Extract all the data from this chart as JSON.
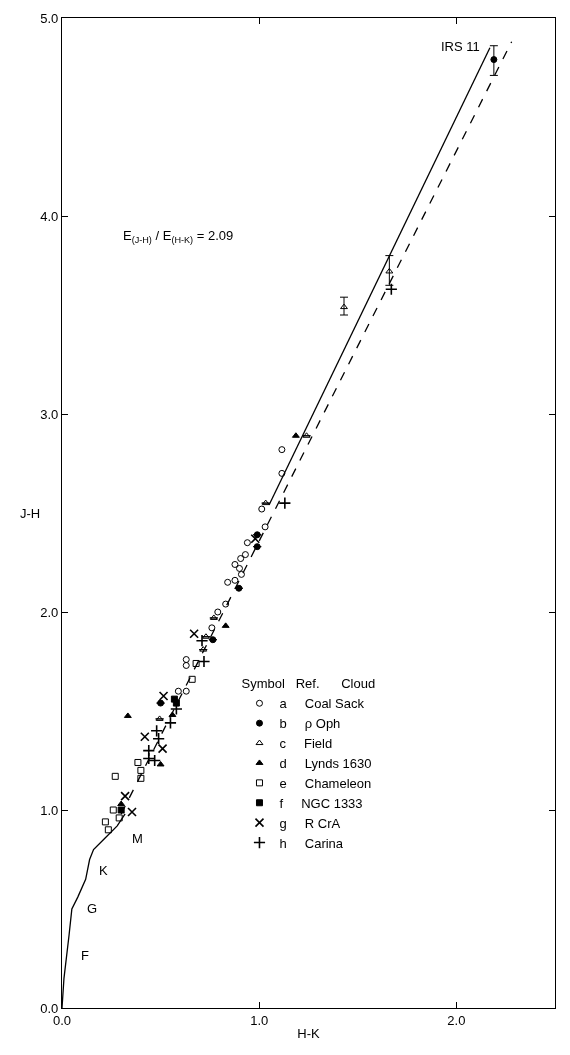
{
  "chart_data": {
    "type": "scatter",
    "xlabel": "H-K",
    "ylabel": "J-H",
    "legend_title": "Symbol   Ref.      Cloud",
    "xlim": [
      0,
      2.5
    ],
    "ylim": [
      0,
      5.0
    ],
    "xticks": [
      {
        "value": 0,
        "label": "0.0"
      },
      {
        "value": 1,
        "label": "1.0"
      },
      {
        "value": 2,
        "label": "2.0"
      }
    ],
    "yticks": [
      {
        "value": 0,
        "label": "0.0"
      },
      {
        "value": 1,
        "label": "1.0"
      },
      {
        "value": 2,
        "label": "2.0"
      },
      {
        "value": 3,
        "label": "3.0"
      },
      {
        "value": 4,
        "label": "4.0"
      },
      {
        "value": 5,
        "label": "5.0"
      }
    ],
    "legend": "bottom right",
    "series": [
      {
        "name": "a     Coal Sack",
        "color": "#000000",
        "marker": "circle-open",
        "x": [
          0.63,
          0.63,
          0.63,
          0.59,
          1.115,
          1.115,
          1.013,
          1.03,
          0.94,
          0.93,
          0.906,
          0.877,
          0.9,
          0.91,
          0.84,
          0.877,
          0.83,
          0.79,
          0.76
        ],
        "values": [
          1.76,
          1.73,
          1.6,
          1.6,
          2.82,
          2.7,
          2.52,
          2.43,
          2.35,
          2.29,
          2.27,
          2.24,
          2.22,
          2.19,
          2.15,
          2.16,
          2.04,
          2.0,
          1.92
        ]
      },
      {
        "name": "b     ρ Oph",
        "color": "#000000",
        "marker": "circle",
        "x": [
          0.5,
          0.99,
          0.99,
          0.897,
          0.765,
          2.19
        ],
        "values": [
          1.54,
          2.39,
          2.33,
          2.12,
          1.86,
          4.79
        ],
        "errors": [
          null,
          null,
          null,
          null,
          null,
          [
            4.71,
            4.86
          ]
        ]
      },
      {
        "name": "c     Field",
        "color": "#000000",
        "marker": "triangle-open",
        "x": [
          1.24,
          1.033,
          0.77,
          0.73,
          0.716,
          0.495,
          1.43,
          1.66
        ],
        "values": [
          2.89,
          2.55,
          1.97,
          1.875,
          1.81,
          1.46,
          3.54,
          3.72
        ],
        "errors": [
          null,
          null,
          null,
          null,
          null,
          null,
          [
            3.5,
            3.59
          ],
          [
            3.65,
            3.8
          ]
        ]
      },
      {
        "name": "d     Lynds 1630",
        "color": "#000000",
        "marker": "triangle",
        "x": [
          0.334,
          1.186,
          0.83,
          0.56,
          0.5,
          0.3
        ],
        "values": [
          1.475,
          2.89,
          1.93,
          1.48,
          1.23,
          1.03
        ]
      },
      {
        "name": "e     Chameleon",
        "color": "#000000",
        "marker": "square-open",
        "x": [
          0.68,
          0.66,
          0.385,
          0.4,
          0.4,
          0.27,
          0.26,
          0.29,
          0.22,
          0.235
        ],
        "values": [
          1.74,
          1.66,
          1.24,
          1.2,
          1.16,
          1.17,
          1.0,
          0.96,
          0.94,
          0.9
        ]
      },
      {
        "name": "f     NGC 1333",
        "color": "#000000",
        "marker": "square",
        "x": [
          0.57,
          0.58,
          0.3
        ],
        "values": [
          1.56,
          1.54,
          1.0
        ]
      },
      {
        "name": "g     R CrA",
        "color": "#000000",
        "marker": "x",
        "x": [
          0.515,
          0.42,
          0.51,
          0.32,
          0.355,
          0.67,
          0.98
        ],
        "values": [
          1.576,
          1.37,
          1.31,
          1.07,
          0.99,
          1.89,
          2.37
        ]
      },
      {
        "name": "h     Carina",
        "color": "#000000",
        "marker": "cross",
        "x": [
          0.72,
          0.58,
          0.55,
          0.48,
          0.49,
          0.44,
          0.44,
          0.47,
          1.13,
          0.71,
          1.67
        ],
        "values": [
          1.75,
          1.51,
          1.44,
          1.4,
          1.36,
          1.3,
          1.26,
          1.25,
          2.55,
          1.855,
          3.63
        ]
      },
      {
        "type": "line",
        "color": "#000000",
        "line_style": "solid",
        "x": [
          0,
          0.01,
          0.036,
          0.05,
          0.08,
          0.12,
          0.14,
          0.16,
          0.22,
          0.28,
          0.32
        ],
        "values": [
          0,
          0.15,
          0.37,
          0.5,
          0.56,
          0.65,
          0.75,
          0.8,
          0.86,
          0.92,
          0.98
        ]
      },
      {
        "type": "line",
        "color": "#000000",
        "line_style": "dashed",
        "x": [
          0.3,
          2.28
        ],
        "values": [
          0.98,
          4.88
        ]
      },
      {
        "type": "line",
        "color": "#000000",
        "line_style": "solid",
        "x": [
          1.05,
          2.17
        ],
        "values": [
          2.54,
          4.85
        ]
      }
    ],
    "annotations": [
      "E$_{(J-H)}$ / E$_{(H-K)}$ = 2.09",
      {
        "text": "IRS 11",
        "x": 2.19,
        "y": 4.79
      },
      "F",
      "G",
      "K",
      "M"
    ]
  }
}
